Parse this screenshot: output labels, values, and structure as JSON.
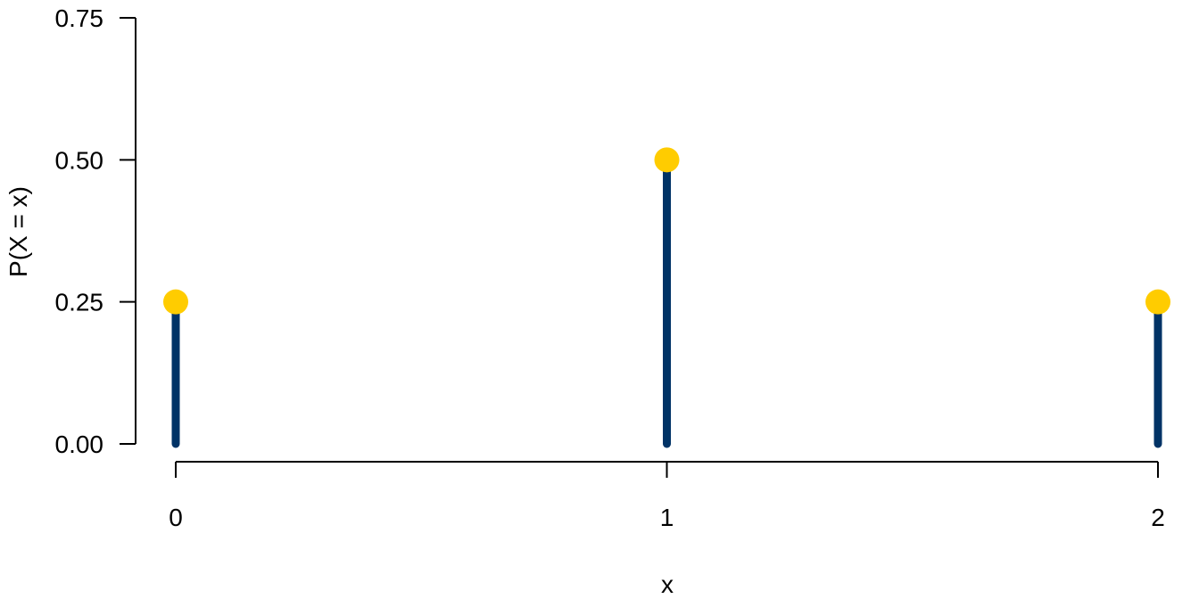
{
  "chart_data": {
    "type": "lollipop",
    "title": "",
    "xlabel": "x",
    "ylabel": "P(X = x)",
    "x": [
      0,
      1,
      2
    ],
    "values": [
      0.25,
      0.5,
      0.25
    ],
    "x_ticks": [
      "0",
      "1",
      "2"
    ],
    "y_ticks": [
      "0.00",
      "0.25",
      "0.50",
      "0.75"
    ],
    "y_tick_values": [
      0,
      0.25,
      0.5,
      0.75
    ],
    "ylim": [
      0,
      0.75
    ],
    "xlim": [
      0,
      2
    ],
    "grid": false,
    "colors": {
      "stem": "#003366",
      "point": "#FFCC00"
    }
  }
}
